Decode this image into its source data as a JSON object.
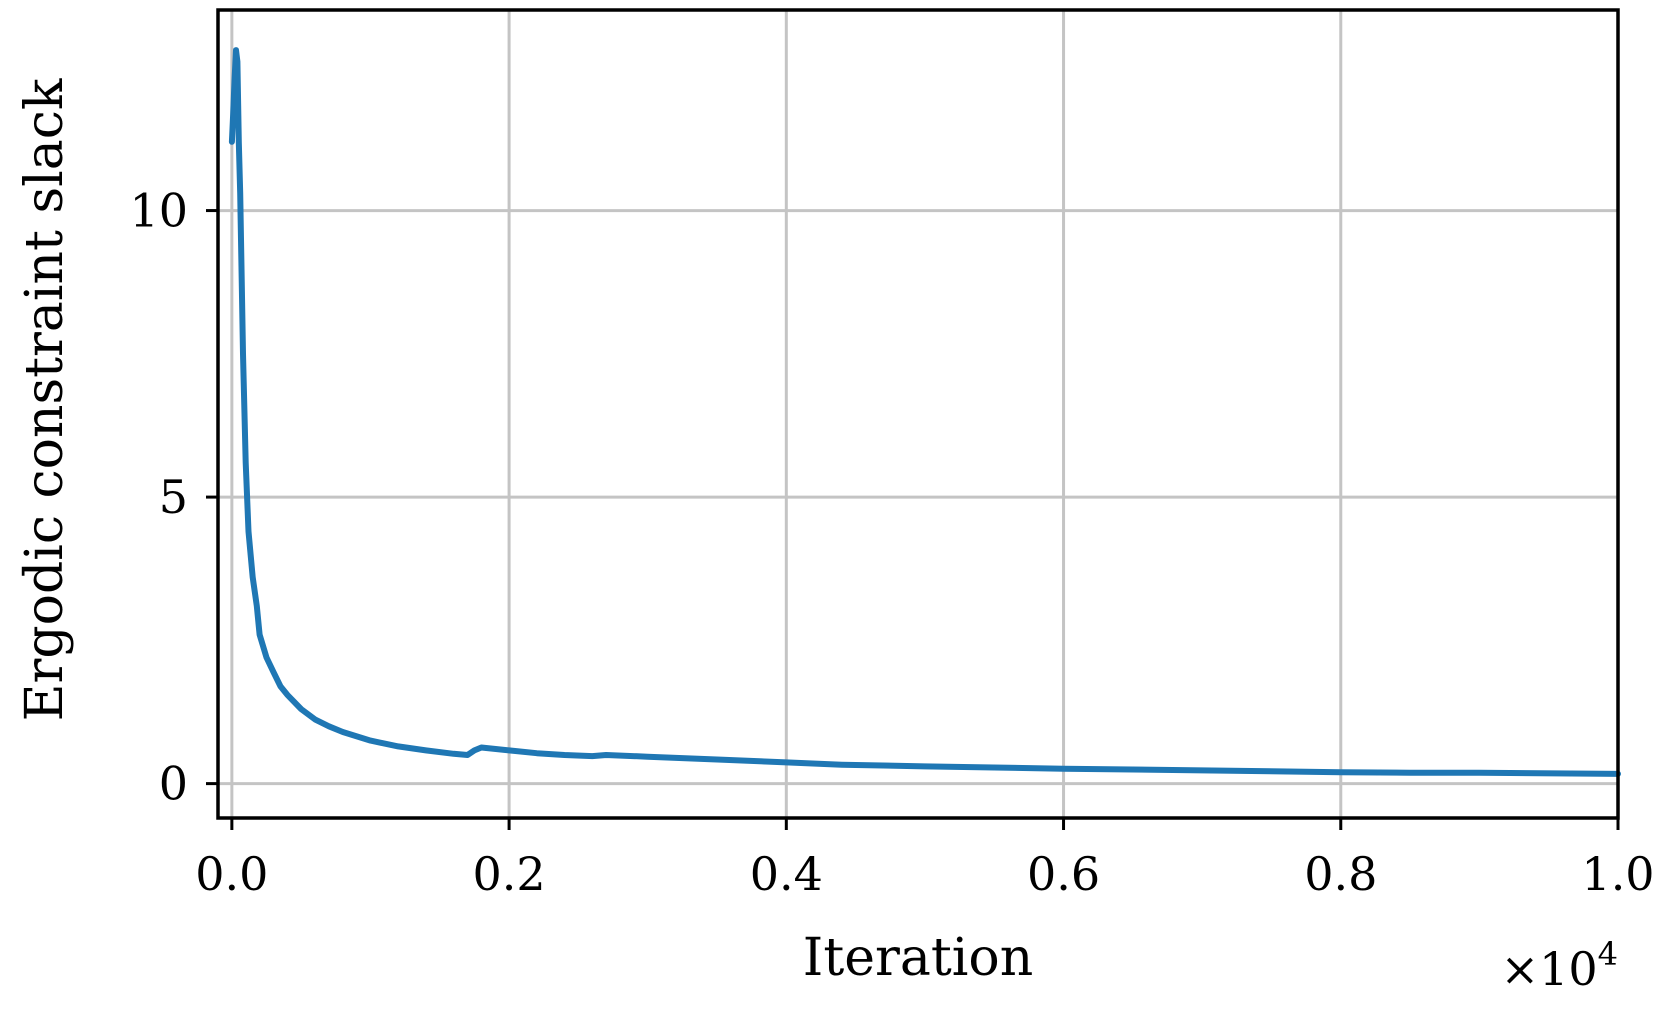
{
  "chart_data": {
    "type": "line",
    "title": "",
    "xlabel": "Iteration",
    "ylabel": "Ergodic constraint slack",
    "x_offset_text": "×10",
    "x_offset_exponent": "4",
    "xlim": [
      -0.01,
      1.0
    ],
    "ylim": [
      -0.6,
      13.5
    ],
    "x_ticks": [
      0.0,
      0.2,
      0.4,
      0.6,
      0.8,
      1.0
    ],
    "x_tick_labels": [
      "0.0",
      "0.2",
      "0.4",
      "0.6",
      "0.8",
      "1.0"
    ],
    "y_ticks": [
      0,
      5,
      10
    ],
    "y_tick_labels": [
      "0",
      "5",
      "10"
    ],
    "grid": true,
    "legend": "none",
    "series": [
      {
        "color": "#1f77b4",
        "x": [
          0.0,
          0.001,
          0.002,
          0.003,
          0.004,
          0.005,
          0.006,
          0.008,
          0.01,
          0.012,
          0.015,
          0.018,
          0.02,
          0.025,
          0.03,
          0.035,
          0.04,
          0.05,
          0.06,
          0.07,
          0.08,
          0.1,
          0.12,
          0.14,
          0.16,
          0.17,
          0.175,
          0.18,
          0.2,
          0.22,
          0.24,
          0.26,
          0.27,
          0.3,
          0.35,
          0.4,
          0.44,
          0.5,
          0.6,
          0.7,
          0.8,
          0.85,
          0.9,
          1.0
        ],
        "y": [
          11.2,
          11.7,
          12.3,
          12.8,
          12.6,
          11.2,
          10.3,
          7.5,
          5.6,
          4.4,
          3.6,
          3.1,
          2.6,
          2.2,
          1.95,
          1.7,
          1.55,
          1.3,
          1.12,
          1.0,
          0.9,
          0.75,
          0.65,
          0.58,
          0.52,
          0.5,
          0.58,
          0.63,
          0.58,
          0.53,
          0.5,
          0.48,
          0.5,
          0.47,
          0.42,
          0.37,
          0.33,
          0.3,
          0.26,
          0.23,
          0.2,
          0.19,
          0.19,
          0.17
        ]
      }
    ]
  }
}
